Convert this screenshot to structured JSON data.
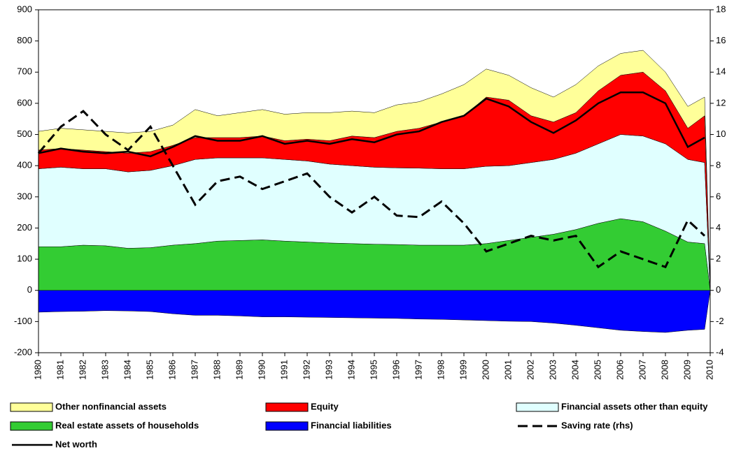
{
  "chart_data": {
    "type": "stacked-area-line",
    "x": [
      1980,
      1981,
      1982,
      1983,
      1984,
      1985,
      1986,
      1987,
      1988,
      1989,
      1990,
      1991,
      1992,
      1993,
      1994,
      1995,
      1996,
      1997,
      1998,
      1999,
      2000,
      2001,
      2002,
      2003,
      2004,
      2005,
      2006,
      2007,
      2008,
      2009,
      2009.75,
      2010
    ],
    "xlim": [
      1980,
      2010
    ],
    "xticks": [
      1980,
      1981,
      1982,
      1983,
      1984,
      1985,
      1986,
      1987,
      1988,
      1989,
      1990,
      1991,
      1992,
      1993,
      1994,
      1995,
      1996,
      1997,
      1998,
      1999,
      2000,
      2001,
      2002,
      2003,
      2004,
      2005,
      2006,
      2007,
      2008,
      2009,
      2010
    ],
    "ylim": [
      -200,
      900
    ],
    "yticks": [
      -200,
      -100,
      0,
      100,
      200,
      300,
      400,
      500,
      600,
      700,
      800,
      900
    ],
    "y2lim": [
      -4,
      18
    ],
    "y2ticks": [
      -4,
      -2,
      0,
      2,
      4,
      6,
      8,
      10,
      12,
      14,
      16,
      18
    ],
    "series": [
      {
        "name": "Other nonfinancial assets",
        "kind": "area",
        "color": "#ffff99",
        "values": [
          60,
          65,
          65,
          65,
          65,
          65,
          65,
          90,
          70,
          80,
          85,
          85,
          85,
          90,
          80,
          80,
          85,
          85,
          90,
          100,
          90,
          80,
          90,
          80,
          90,
          80,
          70,
          70,
          60,
          70,
          60,
          0
        ]
      },
      {
        "name": "Equity",
        "kind": "area",
        "color": "#ff0000",
        "values": [
          60,
          60,
          60,
          55,
          60,
          60,
          65,
          70,
          65,
          65,
          70,
          60,
          70,
          75,
          95,
          95,
          117,
          128,
          150,
          170,
          222,
          210,
          150,
          120,
          130,
          170,
          190,
          205,
          170,
          100,
          150,
          0
        ]
      },
      {
        "name": "Financial assets other than equity",
        "kind": "area",
        "color": "#e0ffff",
        "values": [
          250,
          255,
          245,
          247,
          245,
          248,
          255,
          270,
          267,
          265,
          263,
          262,
          260,
          253,
          250,
          247,
          246,
          247,
          245,
          245,
          248,
          240,
          240,
          240,
          245,
          255,
          270,
          275,
          280,
          265,
          260,
          0
        ]
      },
      {
        "name": "Real estate assets of households",
        "kind": "area",
        "color": "#33cc33",
        "values": [
          140,
          140,
          145,
          143,
          135,
          137,
          145,
          150,
          158,
          160,
          162,
          158,
          155,
          152,
          150,
          148,
          147,
          145,
          145,
          145,
          150,
          160,
          170,
          180,
          195,
          215,
          230,
          220,
          190,
          155,
          150,
          0
        ]
      },
      {
        "name": "Financial liabilities",
        "kind": "area",
        "color": "#0000ff",
        "values": [
          -70,
          -68,
          -67,
          -65,
          -66,
          -68,
          -75,
          -80,
          -80,
          -82,
          -85,
          -85,
          -86,
          -87,
          -88,
          -89,
          -90,
          -92,
          -93,
          -95,
          -97,
          -99,
          -100,
          -105,
          -112,
          -120,
          -128,
          -132,
          -135,
          -128,
          -125,
          0
        ]
      },
      {
        "name": "Saving rate (rhs)",
        "kind": "line",
        "dashed": true,
        "axis": "y2",
        "color": "#000000",
        "values": [
          8.8,
          10.5,
          11.5,
          10,
          9,
          10.5,
          8,
          5.5,
          7,
          7.3,
          6.5,
          7,
          7.5,
          6,
          5,
          6,
          4.8,
          4.7,
          5.7,
          4.3,
          2.5,
          3,
          3.5,
          3.2,
          3.5,
          1.5,
          2.5,
          2,
          1.5,
          4.5,
          3.5,
          null
        ]
      },
      {
        "name": "Net worth",
        "kind": "line",
        "dashed": false,
        "color": "#000000",
        "values": [
          440,
          455,
          445,
          440,
          445,
          430,
          460,
          495,
          480,
          480,
          495,
          470,
          480,
          470,
          485,
          475,
          500,
          510,
          540,
          560,
          615,
          590,
          540,
          505,
          545,
          600,
          635,
          635,
          600,
          460,
          490,
          null
        ]
      }
    ]
  }
}
